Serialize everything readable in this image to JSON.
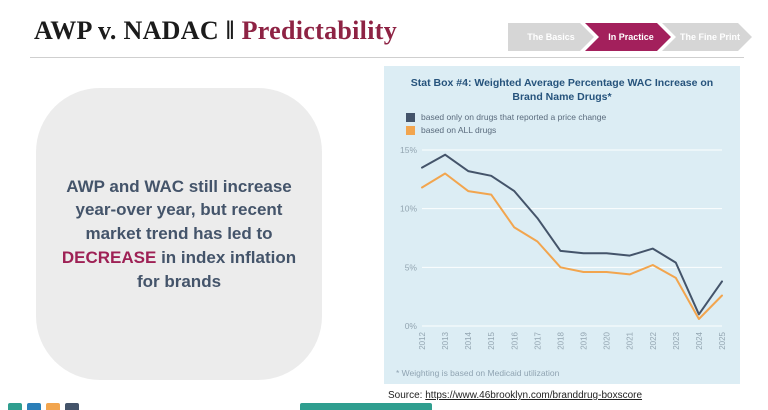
{
  "header": {
    "title_main": "AWP v. NADAC",
    "title_sep": "‖",
    "title_accent": "Predictability",
    "breadcrumbs": [
      {
        "label": "The Basics",
        "active": false
      },
      {
        "label": "In Practice",
        "active": true
      },
      {
        "label": "The Fine Print",
        "active": false
      }
    ]
  },
  "callout": {
    "text_before": "AWP and WAC still increase year-over year, but recent market trend has led to ",
    "highlight": "DECREASE",
    "text_after": " in index inflation for brands"
  },
  "chart_panel": {
    "title": "Stat Box #4: Weighted Average Percentage WAC Increase on Brand Name Drugs*",
    "footnote": "* Weighting is based on Medicaid utilization"
  },
  "source": {
    "label": "Source: ",
    "url": "https://www.46brooklyn.com/branddrug-boxscore"
  },
  "chart_data": {
    "type": "line",
    "title": "Stat Box #4: Weighted Average Percentage WAC Increase on Brand Name Drugs*",
    "x": [
      "2012",
      "2013",
      "2014",
      "2015",
      "2016",
      "2017",
      "2018",
      "2019",
      "2020",
      "2021",
      "2022",
      "2023",
      "2024",
      "2025"
    ],
    "series": [
      {
        "name": "based only on drugs that reported a price change",
        "color": "#44546a",
        "values": [
          13.5,
          14.6,
          13.2,
          12.8,
          11.5,
          9.2,
          6.4,
          6.2,
          6.2,
          6.0,
          6.6,
          5.4,
          1.0,
          3.8
        ]
      },
      {
        "name": "based on ALL drugs",
        "color": "#f2a54e",
        "values": [
          11.8,
          13.0,
          11.5,
          11.2,
          8.4,
          7.2,
          5.0,
          4.6,
          4.6,
          4.4,
          5.2,
          4.1,
          0.6,
          2.6
        ]
      }
    ],
    "ylim": [
      0,
      15
    ],
    "yticks": [
      "0%",
      "5%",
      "10%",
      "15%"
    ],
    "xlabel": "",
    "ylabel": "",
    "grid": true,
    "legend_position": "top-left"
  },
  "colors": {
    "accent_maroon": "#9e2155",
    "title_accent": "#8e2344",
    "navy_series": "#44546a",
    "orange_series": "#f2a54e",
    "panel_background": "#dcedf4",
    "crumb_gray": "#d6d6d6",
    "callout_background": "#ececec"
  }
}
